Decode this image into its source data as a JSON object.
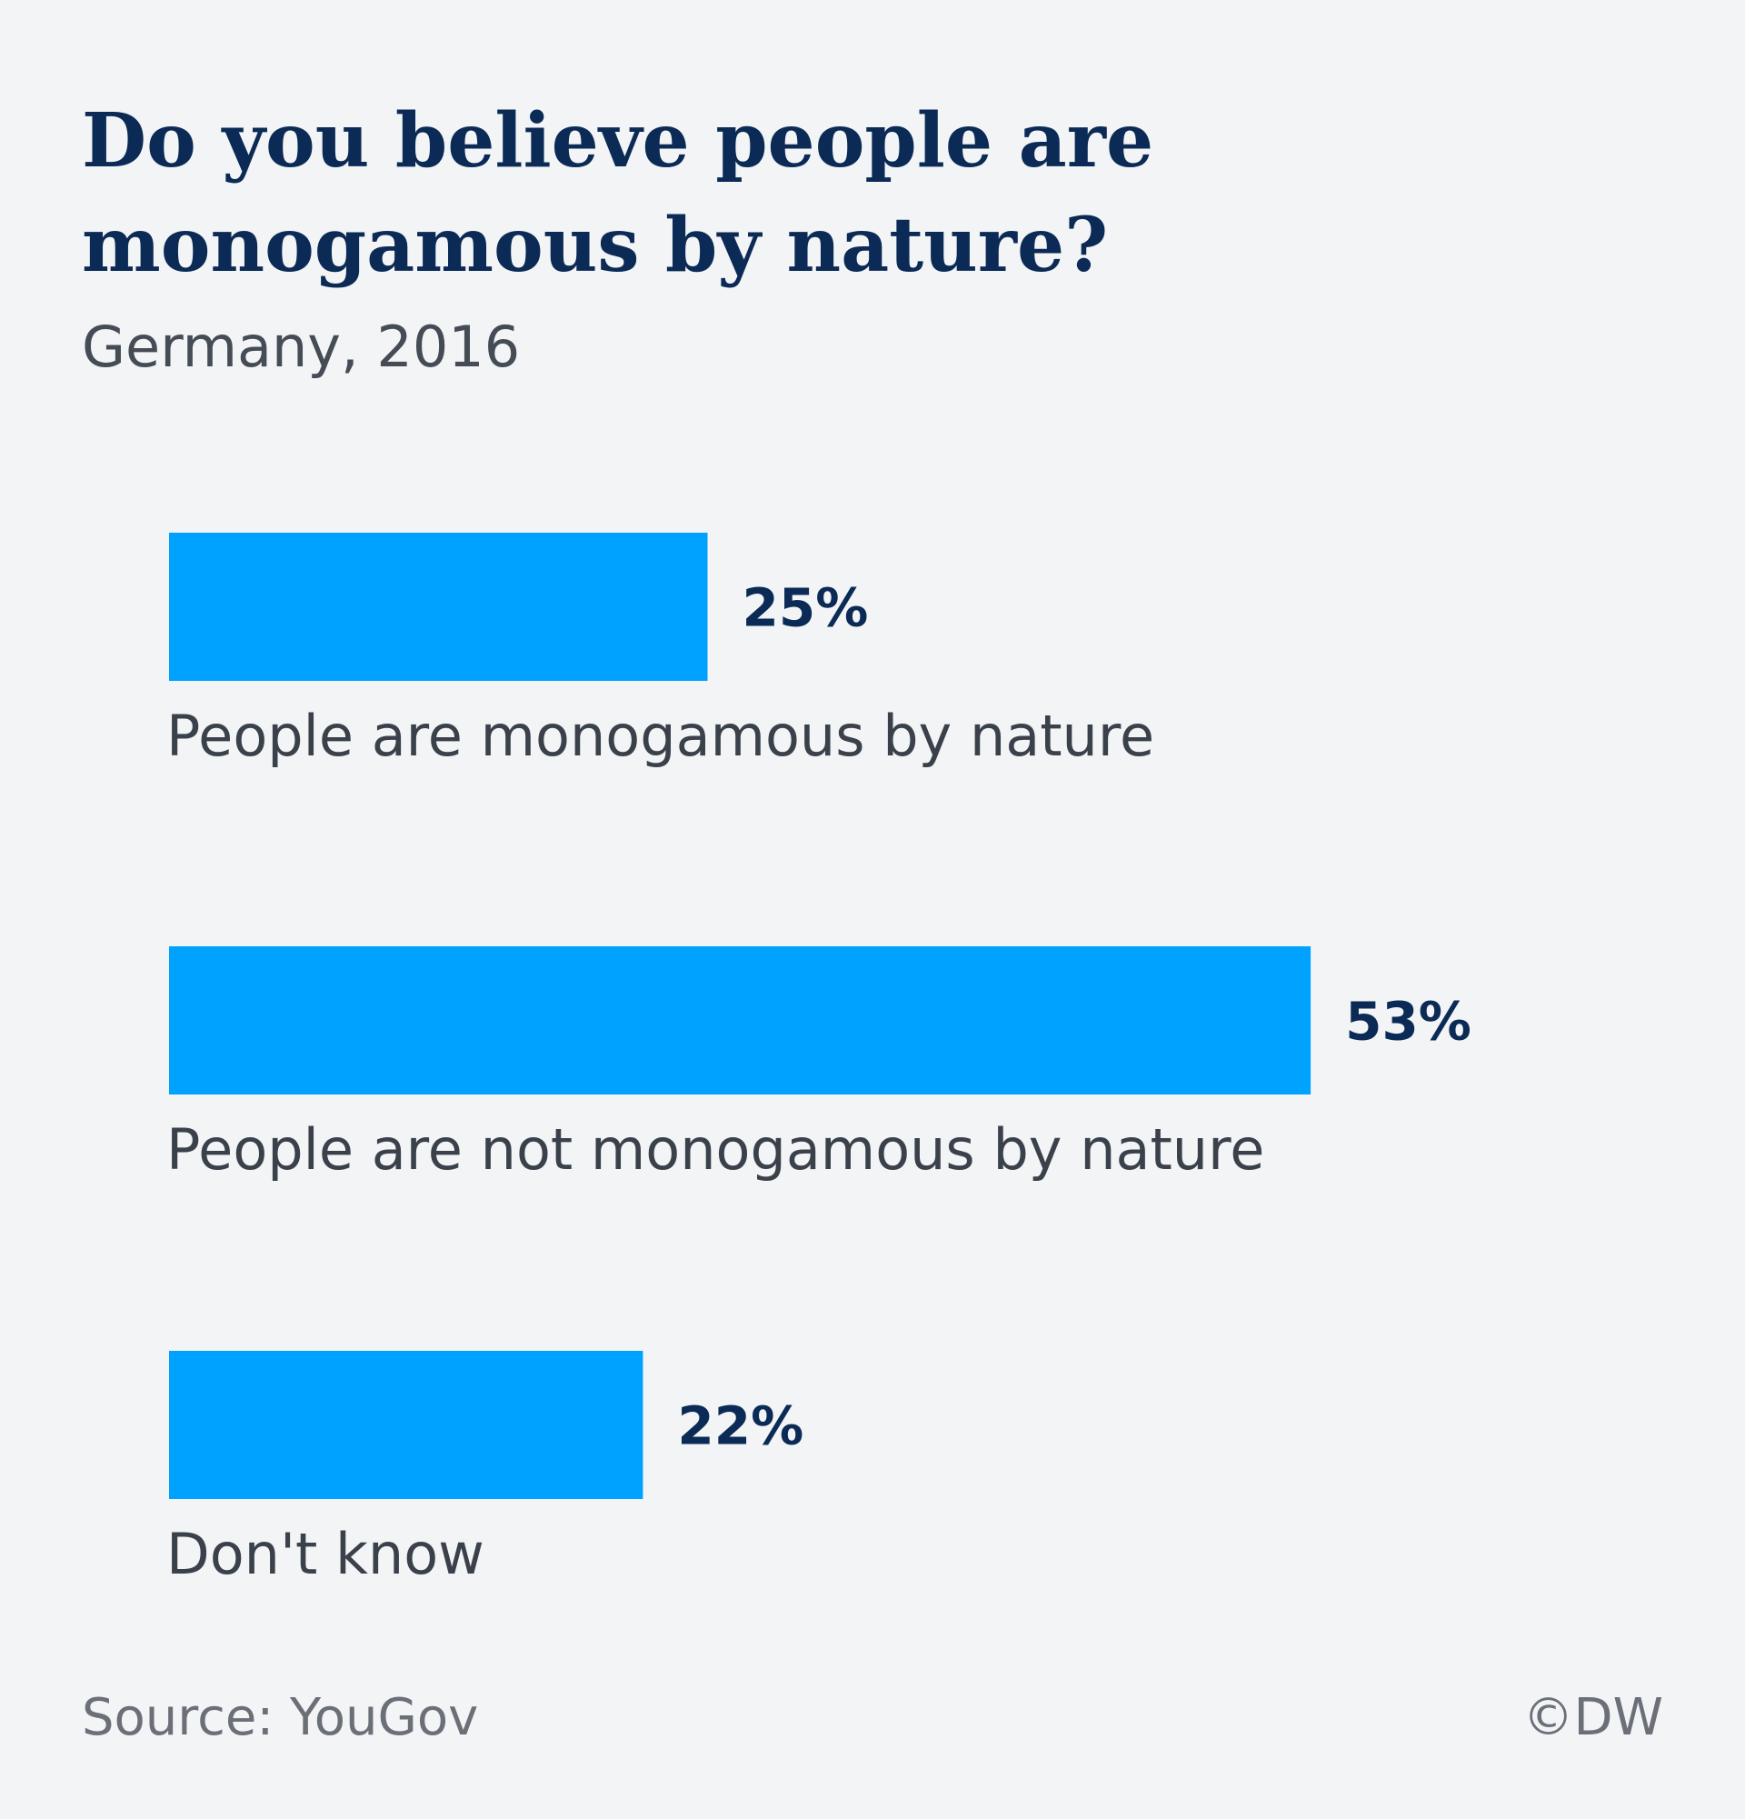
{
  "title": "Do you believe people are monogamous by nature?",
  "subtitle": "Germany, 2016",
  "source": "Source: YouGov",
  "copyright": "©DW",
  "colors": {
    "bar": "#00a2ff",
    "title": "#0b2a55",
    "background": "#f2f4f6"
  },
  "chart_data": {
    "type": "bar",
    "orientation": "horizontal",
    "categories": [
      "People are monogamous by nature",
      "People are not monogamous by nature",
      "Don't know"
    ],
    "values": [
      25,
      53,
      22
    ],
    "value_labels": [
      "25%",
      "53%",
      "22%"
    ],
    "unit": "%",
    "grid": false,
    "legend": "none"
  }
}
